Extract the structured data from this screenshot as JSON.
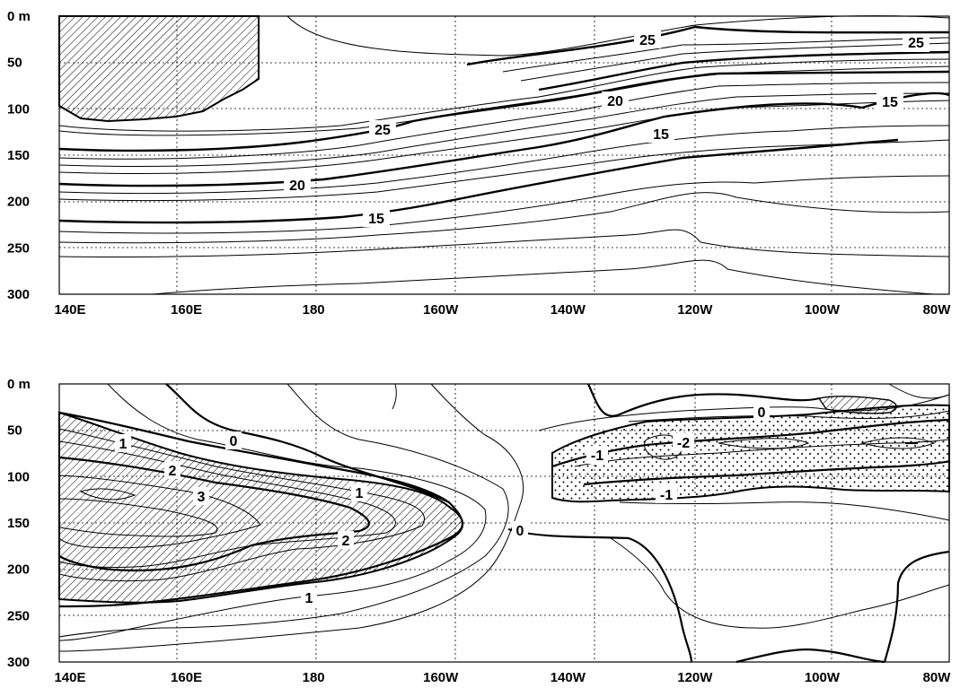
{
  "chart_data": [
    {
      "type": "contour",
      "panel": "top",
      "x_tick_labels": [
        "140E",
        "160E",
        "180",
        "160W",
        "140W",
        "120W",
        "100W",
        "80W"
      ],
      "x_ticks_lon": [
        140,
        160,
        180,
        200,
        220,
        240,
        260,
        280
      ],
      "y_tick_labels": [
        "0 m",
        "50",
        "100",
        "150",
        "200",
        "250",
        "300"
      ],
      "y_ticks_depth": [
        0,
        50,
        100,
        150,
        200,
        250,
        300
      ],
      "xlim": [
        140,
        280
      ],
      "ylim": [
        0,
        300
      ],
      "y_inverted": true,
      "grid": "dotted",
      "contour_labels": [
        "25",
        "25",
        "25",
        "20",
        "20",
        "15",
        "15",
        "15"
      ],
      "hatched_region": "warm water > 29 near surface, 140E-189E"
    },
    {
      "type": "contour",
      "panel": "bottom",
      "x_tick_labels": [
        "140E",
        "160E",
        "180",
        "160W",
        "140W",
        "120W",
        "100W",
        "80W"
      ],
      "x_ticks_lon": [
        140,
        160,
        180,
        200,
        220,
        240,
        260,
        280
      ],
      "y_tick_labels": [
        "0 m",
        "50",
        "100",
        "150",
        "200",
        "250",
        "300"
      ],
      "y_ticks_depth": [
        0,
        50,
        100,
        150,
        200,
        250,
        300
      ],
      "xlim": [
        140,
        280
      ],
      "ylim": [
        0,
        300
      ],
      "y_inverted": true,
      "grid": "dotted",
      "contour_labels": [
        "1",
        "2",
        "3",
        "1",
        "2",
        "1",
        "0",
        "0",
        "0",
        "-1",
        "-2",
        "-1"
      ],
      "hatched_region": "positive anomaly > 0.5 in western Pacific",
      "stippled_region": "negative anomaly < -0.5 in eastern Pacific"
    }
  ]
}
